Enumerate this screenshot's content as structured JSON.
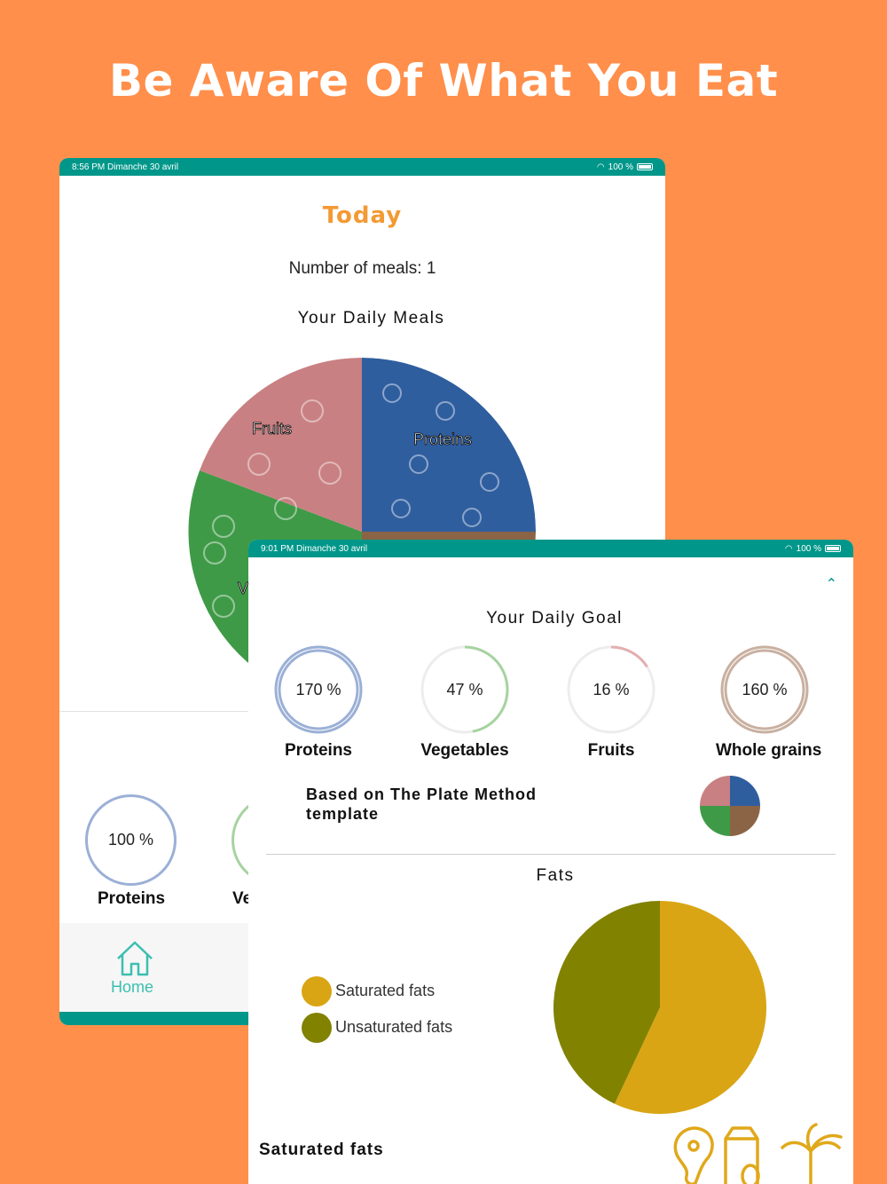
{
  "headline": "Be Aware Of What You Eat",
  "tablet1": {
    "status_time": "8:56 PM   Dimanche 30 avril",
    "status_battery": "100 %",
    "title": "Today",
    "meals": "Number of meals: 1",
    "daily_meals": "Your Daily Meals",
    "pie_labels": {
      "fruits": "Fruits",
      "proteins": "Proteins",
      "vegetables": "V"
    },
    "ring_value": "100 %",
    "ring_label": "Proteins",
    "ring2_label": "Ve",
    "nav_home": "Home"
  },
  "tablet2": {
    "status_time": "9:01 PM   Dimanche 30 avril",
    "status_battery": "100 %",
    "goal_title": "Your Daily Goal",
    "goals": [
      {
        "value": "170 %",
        "label": "Proteins",
        "color": "#9BB0D6",
        "progress": 1.0
      },
      {
        "value": "47 %",
        "label": "Vegetables",
        "color": "#A6D3A0",
        "progress": 0.47
      },
      {
        "value": "16 %",
        "label": "Fruits",
        "color": "#E3AFB1",
        "progress": 0.16
      },
      {
        "value": "160 %",
        "label": "Whole grains",
        "color": "#C9B0A0",
        "progress": 1.0
      }
    ],
    "based_on": "Based on The Plate Method template",
    "fats_title": "Fats",
    "legend": [
      {
        "label": "Saturated fats",
        "color": "#D9A514"
      },
      {
        "label": "Unsaturated fats",
        "color": "#818200"
      }
    ],
    "saturated_title": "Saturated fats"
  },
  "chart_data": {
    "type": "pie",
    "categories": [
      "Saturated fats",
      "Unsaturated fats"
    ],
    "values": [
      57,
      43
    ],
    "colors": [
      "#D9A514",
      "#818200"
    ]
  },
  "colors": {
    "background": "#FF8F4A",
    "teal": "#00978A",
    "today": "#F39A34",
    "fruits": "#C98082",
    "proteins": "#2F5E9F",
    "vegetables": "#3F9A47",
    "grains": "#8A6445"
  }
}
